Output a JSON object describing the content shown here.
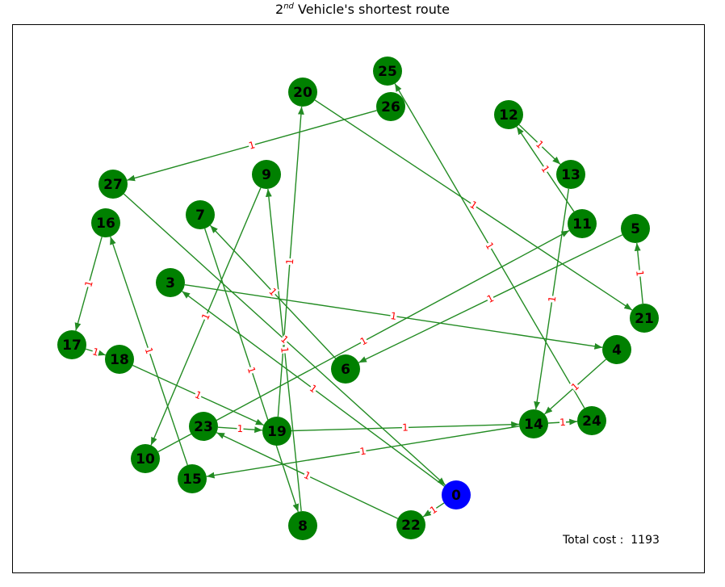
{
  "title": {
    "prefix": "2",
    "sup": "nd",
    "rest": " Vehicle's shortest route"
  },
  "total_cost": {
    "label": "Total cost :",
    "value": "1193"
  },
  "colors": {
    "node": "#008000",
    "depot": "#0000ff",
    "edge": "#228b22",
    "edge_label": "#ff0000"
  },
  "graph": {
    "depot": "0",
    "nodes": [
      "0",
      "3",
      "4",
      "5",
      "6",
      "7",
      "8",
      "9",
      "10",
      "11",
      "12",
      "13",
      "14",
      "15",
      "16",
      "17",
      "18",
      "19",
      "20",
      "21",
      "22",
      "23",
      "24",
      "25",
      "26",
      "27"
    ],
    "edges": [
      {
        "from": "0",
        "to": "22",
        "weight": "1"
      },
      {
        "from": "22",
        "to": "23",
        "weight": "1"
      },
      {
        "from": "23",
        "to": "19",
        "weight": "1"
      },
      {
        "from": "19",
        "to": "20",
        "weight": "1"
      },
      {
        "from": "20",
        "to": "21",
        "weight": "1"
      },
      {
        "from": "21",
        "to": "5",
        "weight": "1"
      },
      {
        "from": "5",
        "to": "6",
        "weight": "1"
      },
      {
        "from": "6",
        "to": "7",
        "weight": "1"
      },
      {
        "from": "7",
        "to": "8",
        "weight": "1"
      },
      {
        "from": "8",
        "to": "9",
        "weight": "1"
      },
      {
        "from": "9",
        "to": "10",
        "weight": "1"
      },
      {
        "from": "10",
        "to": "11",
        "weight": "1"
      },
      {
        "from": "11",
        "to": "12",
        "weight": "1"
      },
      {
        "from": "12",
        "to": "13",
        "weight": "1"
      },
      {
        "from": "13",
        "to": "14",
        "weight": "1"
      },
      {
        "from": "14",
        "to": "15",
        "weight": "1"
      },
      {
        "from": "15",
        "to": "16",
        "weight": "1"
      },
      {
        "from": "16",
        "to": "17",
        "weight": "1"
      },
      {
        "from": "17",
        "to": "18",
        "weight": "1"
      },
      {
        "from": "18",
        "to": "19",
        "weight": "1"
      },
      {
        "from": "19",
        "to": "14",
        "weight": "1"
      },
      {
        "from": "14",
        "to": "24",
        "weight": "1"
      },
      {
        "from": "24",
        "to": "25",
        "weight": "1"
      },
      {
        "from": "26",
        "to": "27",
        "weight": "1"
      },
      {
        "from": "27",
        "to": "0",
        "weight": "1"
      },
      {
        "from": "0",
        "to": "3",
        "weight": "1"
      },
      {
        "from": "3",
        "to": "4",
        "weight": "1"
      },
      {
        "from": "4",
        "to": "14",
        "weight": "1"
      }
    ]
  }
}
